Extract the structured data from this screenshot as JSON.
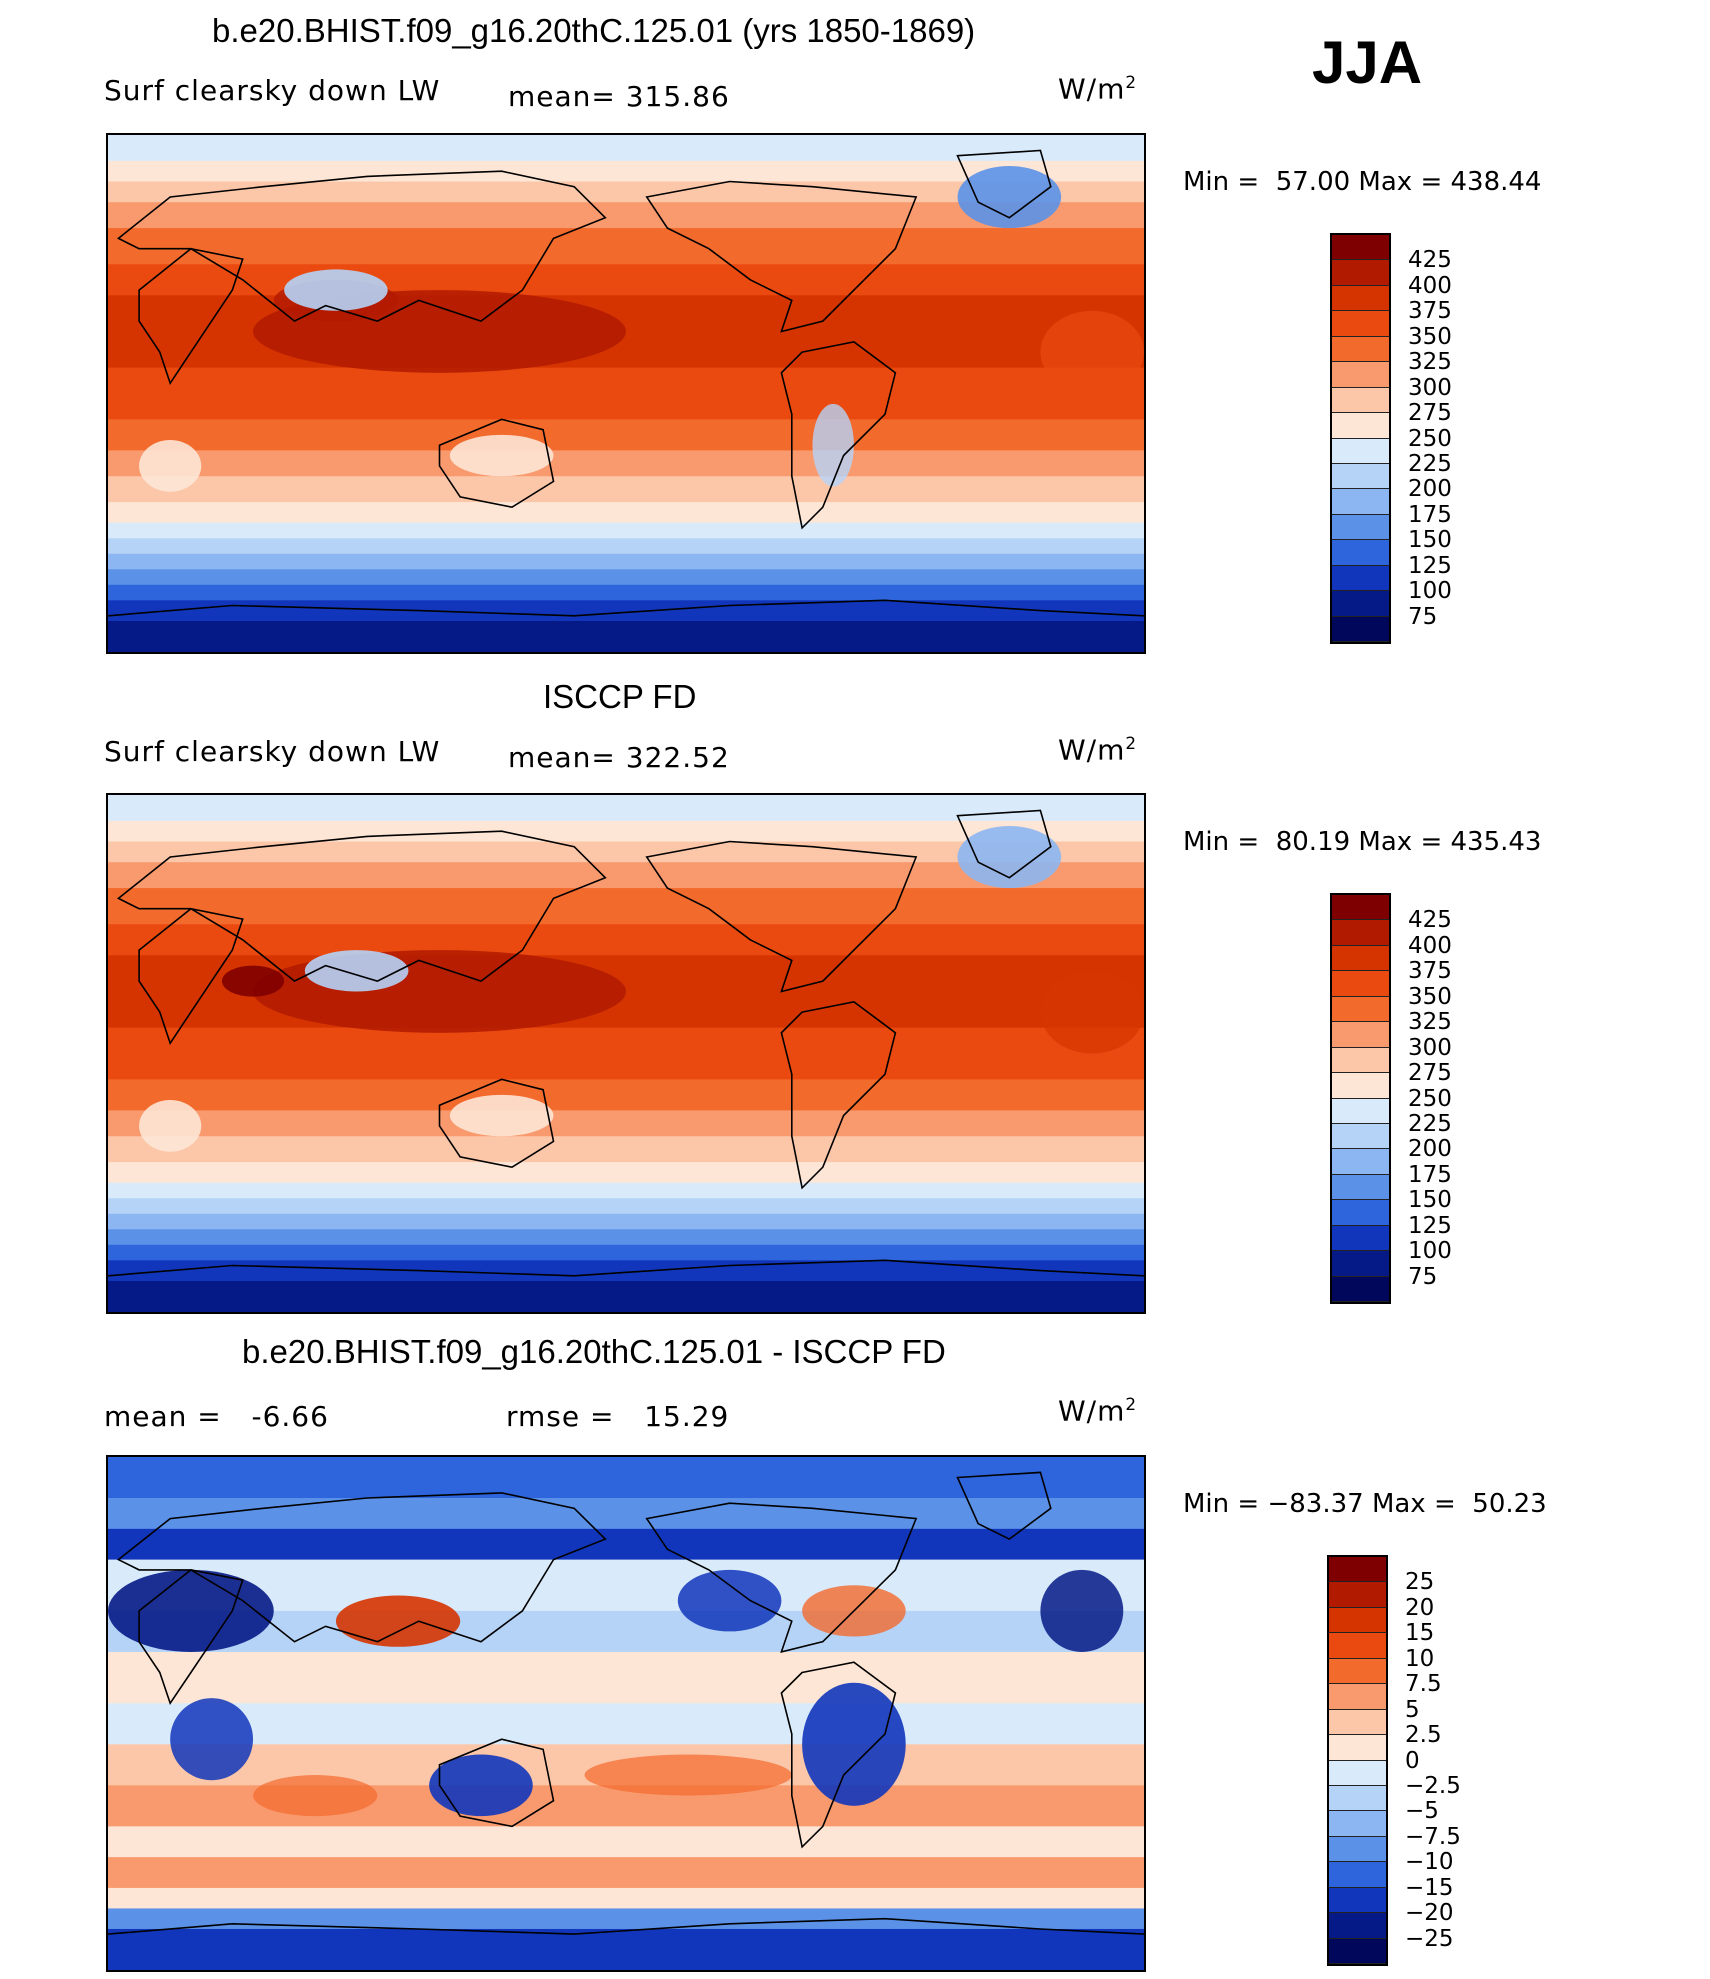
{
  "season": "JJA",
  "panels": [
    {
      "title": "b.e20.BHIST.f09_g16.20thC.125.01 (yrs 1850-1869)",
      "variable": "Surf clearsky down LW",
      "stat_label": "mean=",
      "stat_value": "315.86",
      "stat2_label": "",
      "stat2_value": "",
      "units": "W/m",
      "units_sup": "2",
      "min_label": "Min =",
      "min_value": "57.00",
      "max_label": "Max =",
      "max_value": "438.44",
      "type": "absolute"
    },
    {
      "title": "ISCCP FD",
      "variable": "Surf clearsky down LW",
      "stat_label": "mean=",
      "stat_value": "322.52",
      "stat2_label": "",
      "stat2_value": "",
      "units": "W/m",
      "units_sup": "2",
      "min_label": "Min =",
      "min_value": "80.19",
      "max_label": "Max =",
      "max_value": "435.43",
      "type": "absolute"
    },
    {
      "title": "b.e20.BHIST.f09_g16.20thC.125.01 - ISCCP FD",
      "variable": "",
      "stat_label": "mean =",
      "stat_value": "-6.66",
      "stat2_label": "rmse =",
      "stat2_value": "15.29",
      "units": "W/m",
      "units_sup": "2",
      "min_label": "Min =",
      "min_value": "−83.37",
      "max_label": "Max =",
      "max_value": "50.23",
      "type": "difference"
    }
  ],
  "chart_data": [
    {
      "type": "heatmap",
      "title": "b.e20.BHIST.f09_g16.20thC.125.01 (yrs 1850-1869)",
      "variable": "Surf clearsky down LW",
      "units": "W/m2",
      "mean": 315.86,
      "min": 57.0,
      "max": 438.44,
      "colorbar_levels": [
        "425",
        "400",
        "375",
        "350",
        "325",
        "300",
        "275",
        "250",
        "225",
        "200",
        "175",
        "150",
        "125",
        "100",
        "75"
      ],
      "colorbar_colors": [
        "#7f0000",
        "#b21a00",
        "#d53400",
        "#ea4a10",
        "#f36a2d",
        "#f99a6e",
        "#fcc7a9",
        "#fde6d5",
        "#d9ebfb",
        "#b5d3f7",
        "#8cb6f1",
        "#5b92e8",
        "#2e64dc",
        "#1136bb",
        "#051a86",
        "#01075b"
      ]
    },
    {
      "type": "heatmap",
      "title": "ISCCP FD",
      "variable": "Surf clearsky down LW",
      "units": "W/m2",
      "mean": 322.52,
      "min": 80.19,
      "max": 435.43,
      "colorbar_levels": [
        "425",
        "400",
        "375",
        "350",
        "325",
        "300",
        "275",
        "250",
        "225",
        "200",
        "175",
        "150",
        "125",
        "100",
        "75"
      ],
      "colorbar_colors": [
        "#7f0000",
        "#b21a00",
        "#d53400",
        "#ea4a10",
        "#f36a2d",
        "#f99a6e",
        "#fcc7a9",
        "#fde6d5",
        "#d9ebfb",
        "#b5d3f7",
        "#8cb6f1",
        "#5b92e8",
        "#2e64dc",
        "#1136bb",
        "#051a86",
        "#01075b"
      ]
    },
    {
      "type": "heatmap",
      "title": "b.e20.BHIST.f09_g16.20thC.125.01 - ISCCP FD",
      "units": "W/m2",
      "mean": -6.66,
      "rmse": 15.29,
      "min": -83.37,
      "max": 50.23,
      "colorbar_levels": [
        "25",
        "20",
        "15",
        "10",
        "7.5",
        "5",
        "2.5",
        "0",
        "−2.5",
        "−5",
        "−7.5",
        "−10",
        "−15",
        "−20",
        "−25"
      ],
      "colorbar_colors": [
        "#7f0000",
        "#b21a00",
        "#d53400",
        "#ea4a10",
        "#f36a2d",
        "#f99a6e",
        "#fcc7a9",
        "#fde6d5",
        "#d9ebfb",
        "#b5d3f7",
        "#8cb6f1",
        "#5b92e8",
        "#2e64dc",
        "#1136bb",
        "#051a86",
        "#01075b"
      ]
    }
  ]
}
